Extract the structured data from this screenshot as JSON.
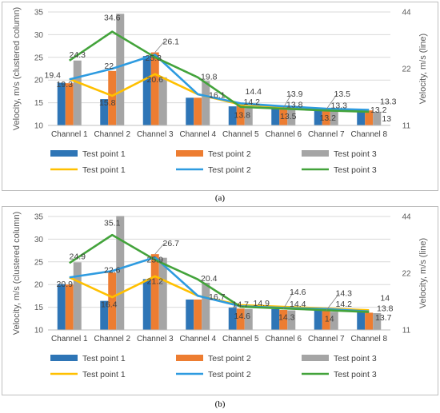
{
  "charts": [
    {
      "id": "a",
      "caption": "(a)",
      "categories": [
        "Channel 1",
        "Channel 2",
        "Channel 3",
        "Channel 4",
        "Channel 5",
        "Channel 6",
        "Channel 7",
        "Channel 8"
      ],
      "y_left": {
        "label": "Velocity, m/s (clustered column)",
        "min": 10,
        "max": 35,
        "ticks": [
          10,
          15,
          20,
          25,
          30,
          35
        ]
      },
      "y_right": {
        "label": "Velocity, m/s (line)",
        "min": 11,
        "max": 44,
        "ticks": [
          11,
          22,
          44
        ],
        "scale": "log"
      },
      "bars": [
        {
          "name": "Test point 1",
          "color": "#2e75b6",
          "values": [
            19.4,
            15.8,
            25.3,
            16.1,
            14.2,
            13.8,
            13.3,
            13.2
          ]
        },
        {
          "name": "Test point 2",
          "color": "#ed7d31",
          "values": [
            19.3,
            22,
            26.1,
            16.1,
            14.4,
            13.9,
            13.5,
            13.3
          ]
        },
        {
          "name": "Test point 3",
          "color": "#a5a5a5",
          "values": [
            24.3,
            34.6,
            20.6,
            19.8,
            13.8,
            13.5,
            13.2,
            13
          ]
        }
      ],
      "lines": [
        {
          "name": "Test point 1",
          "color": "#ffc000",
          "values": [
            19.4,
            15.8,
            20.6,
            16.1,
            14.2,
            13.8,
            13.3,
            13.2
          ]
        },
        {
          "name": "Test point 2",
          "color": "#2e9be0",
          "values": [
            19.3,
            22,
            26.1,
            16.1,
            14.4,
            13.9,
            13.5,
            13.3
          ]
        },
        {
          "name": "Test point 3",
          "color": "#43a33b",
          "values": [
            24.3,
            34.6,
            25.3,
            19.8,
            13.8,
            13.5,
            13.2,
            13
          ]
        }
      ],
      "data_labels": [
        {
          "text": "19.4",
          "ch": 0,
          "v": 19.4,
          "dx": -21,
          "dy": -6
        },
        {
          "text": "19.3",
          "ch": 0,
          "v": 19.3,
          "dx": -6,
          "dy": 5
        },
        {
          "text": "24.3",
          "ch": 0,
          "v": 24.3,
          "dx": 10,
          "dy": -4
        },
        {
          "text": "15.8",
          "ch": 1,
          "v": 15.8,
          "dx": -6,
          "dy": 8
        },
        {
          "text": "22",
          "ch": 1,
          "v": 22,
          "dx": -4,
          "dy": -3
        },
        {
          "text": "34.6",
          "ch": 1,
          "v": 34.6,
          "dx": 0,
          "dy": 8
        },
        {
          "text": "25.3",
          "ch": 2,
          "v": 25.3,
          "dx": -2,
          "dy": 6
        },
        {
          "text": "26.1",
          "ch": 2,
          "v": 26.1,
          "dx": 20,
          "dy": -10
        },
        {
          "text": "20.6",
          "ch": 2,
          "v": 20.6,
          "dx": 0,
          "dy": 6
        },
        {
          "text": "16.1",
          "ch": 3,
          "v": 16.1,
          "dx": 24,
          "dy": 0
        },
        {
          "text": "19.8",
          "ch": 3,
          "v": 19.8,
          "dx": 14,
          "dy": -2
        },
        {
          "text": "14.2",
          "ch": 4,
          "v": 14.2,
          "dx": 14,
          "dy": -2
        },
        {
          "text": "14.4",
          "ch": 4,
          "v": 14.4,
          "dx": 16,
          "dy": -14
        },
        {
          "text": "13.8",
          "ch": 4,
          "v": 13.8,
          "dx": 2,
          "dy": 12
        },
        {
          "text": "13.9",
          "ch": 5,
          "v": 13.9,
          "dx": 14,
          "dy": -14
        },
        {
          "text": "13.8",
          "ch": 5,
          "v": 13.8,
          "dx": 14,
          "dy": -1
        },
        {
          "text": "13.5",
          "ch": 5,
          "v": 13.5,
          "dx": 6,
          "dy": 12
        },
        {
          "text": "13.5",
          "ch": 6,
          "v": 13.5,
          "dx": 20,
          "dy": -16
        },
        {
          "text": "13.3",
          "ch": 6,
          "v": 13.3,
          "dx": 16,
          "dy": -3
        },
        {
          "text": "13.2",
          "ch": 6,
          "v": 13.2,
          "dx": 2,
          "dy": 12
        },
        {
          "text": "13.3",
          "ch": 7,
          "v": 13.3,
          "dx": 24,
          "dy": -8
        },
        {
          "text": "13.2",
          "ch": 7,
          "v": 13.2,
          "dx": 12,
          "dy": 2
        },
        {
          "text": "13",
          "ch": 7,
          "v": 13,
          "dx": 22,
          "dy": 12
        }
      ],
      "leader_lines": [
        {
          "ch": 2,
          "v": 26.1,
          "tdx": 12,
          "tdy": -14
        },
        {
          "ch": 5,
          "v": 13.9,
          "tdx": 10,
          "tdy": -17
        },
        {
          "ch": 6,
          "v": 13.5,
          "tdx": 14,
          "tdy": -20
        }
      ],
      "legend": {
        "bars": [
          "Test point 1",
          "Test point 2",
          "Test point 3"
        ],
        "lines": [
          "Test point 1",
          "Test point 2",
          "Test point 3"
        ]
      }
    },
    {
      "id": "b",
      "caption": "(b)",
      "categories": [
        "Channel 1",
        "Channel 2",
        "Channel 3",
        "Channel 4",
        "Channel 5",
        "Channel 6",
        "Channel 7",
        "Channel 8"
      ],
      "y_left": {
        "label": "Velocity, m/s (clustered column)",
        "min": 10,
        "max": 35,
        "ticks": [
          10,
          15,
          20,
          25,
          30,
          35
        ]
      },
      "y_right": {
        "label": "Velocity, m/s (line)",
        "min": 11,
        "max": 44,
        "ticks": [
          11,
          22,
          44
        ],
        "scale": "log"
      },
      "bars": [
        {
          "name": "Test point 1",
          "color": "#2e75b6",
          "values": [
            20.1,
            16.4,
            21.2,
            16.7,
            14.9,
            14.6,
            14.3,
            14
          ]
        },
        {
          "name": "Test point 2",
          "color": "#ed7d31",
          "values": [
            20,
            22.6,
            26.7,
            16.7,
            14.7,
            14.4,
            14.2,
            13.8
          ]
        },
        {
          "name": "Test point 3",
          "color": "#a5a5a5",
          "values": [
            24.9,
            35.1,
            25.9,
            20.4,
            14.6,
            14.3,
            14,
            13.7
          ]
        }
      ],
      "lines": [
        {
          "name": "Test point 1",
          "color": "#ffc000",
          "values": [
            20.9,
            16.4,
            21.2,
            16.7,
            14.9,
            14.6,
            14.3,
            14
          ]
        },
        {
          "name": "Test point 2",
          "color": "#2e9be0",
          "values": [
            20.9,
            22.6,
            26.7,
            16.7,
            14.7,
            14.4,
            14.2,
            13.8
          ]
        },
        {
          "name": "Test point 3",
          "color": "#43a33b",
          "values": [
            24.9,
            35.1,
            25.9,
            20.4,
            14.6,
            14.3,
            14,
            13.7
          ]
        }
      ],
      "data_labels": [
        {
          "text": "24.9",
          "ch": 0,
          "v": 24.9,
          "dx": 10,
          "dy": -4
        },
        {
          "text": "20.9",
          "ch": 0,
          "v": 20.9,
          "dx": -6,
          "dy": 8
        },
        {
          "text": "22.6",
          "ch": 1,
          "v": 22.6,
          "dx": 0,
          "dy": 0
        },
        {
          "text": "16.4",
          "ch": 1,
          "v": 16.4,
          "dx": -4,
          "dy": 8
        },
        {
          "text": "35.1",
          "ch": 1,
          "v": 35.1,
          "dx": 0,
          "dy": 12
        },
        {
          "text": "26.7",
          "ch": 2,
          "v": 26.7,
          "dx": 20,
          "dy": -10
        },
        {
          "text": "25.9",
          "ch": 2,
          "v": 25.9,
          "dx": 0,
          "dy": 6
        },
        {
          "text": "21.2",
          "ch": 2,
          "v": 21.2,
          "dx": 0,
          "dy": 6
        },
        {
          "text": "20.4",
          "ch": 3,
          "v": 20.4,
          "dx": 14,
          "dy": -2
        },
        {
          "text": "16.7",
          "ch": 3,
          "v": 16.7,
          "dx": 24,
          "dy": 0
        },
        {
          "text": "14.7",
          "ch": 4,
          "v": 14.7,
          "dx": 0,
          "dy": -2
        },
        {
          "text": "14.9",
          "ch": 4,
          "v": 14.9,
          "dx": 26,
          "dy": -2
        },
        {
          "text": "14.6",
          "ch": 4,
          "v": 14.6,
          "dx": 2,
          "dy": 12
        },
        {
          "text": "14.6",
          "ch": 5,
          "v": 14.6,
          "dx": 18,
          "dy": -18
        },
        {
          "text": "14.4",
          "ch": 5,
          "v": 14.4,
          "dx": 18,
          "dy": -4
        },
        {
          "text": "14.3",
          "ch": 5,
          "v": 14.3,
          "dx": 4,
          "dy": 12
        },
        {
          "text": "14.3",
          "ch": 6,
          "v": 14.3,
          "dx": 22,
          "dy": -18
        },
        {
          "text": "14.2",
          "ch": 6,
          "v": 14.2,
          "dx": 22,
          "dy": -5
        },
        {
          "text": "14",
          "ch": 6,
          "v": 14,
          "dx": 4,
          "dy": 12
        },
        {
          "text": "14",
          "ch": 7,
          "v": 14,
          "dx": 20,
          "dy": -14
        },
        {
          "text": "13.8",
          "ch": 7,
          "v": 13.8,
          "dx": 20,
          "dy": -2
        },
        {
          "text": "13.7",
          "ch": 7,
          "v": 13.7,
          "dx": 18,
          "dy": 9
        }
      ],
      "leader_lines": [
        {
          "ch": 2,
          "v": 26.7,
          "tdx": 12,
          "tdy": -14
        },
        {
          "ch": 5,
          "v": 14.6,
          "tdx": 12,
          "tdy": -21
        },
        {
          "ch": 6,
          "v": 14.3,
          "tdx": 16,
          "tdy": -21
        }
      ],
      "legend": {
        "bars": [
          "Test point 1",
          "Test point 2",
          "Test point 3"
        ],
        "lines": [
          "Test point 1",
          "Test point 2",
          "Test point 3"
        ]
      }
    }
  ],
  "chart_data": [
    {
      "type": "bar",
      "categories": [
        "Channel 1",
        "Channel 2",
        "Channel 3",
        "Channel 4",
        "Channel 5",
        "Channel 6",
        "Channel 7",
        "Channel 8"
      ],
      "ylabel": "Velocity, m/s (clustered column)",
      "ylim": [
        10,
        35
      ],
      "y2label": "Velocity, m/s (line)",
      "y2ticks": [
        11,
        22,
        44
      ],
      "series": [
        {
          "name": "Test point 1",
          "kind": "bar",
          "values": [
            19.4,
            15.8,
            25.3,
            16.1,
            14.2,
            13.8,
            13.3,
            13.2
          ]
        },
        {
          "name": "Test point 2",
          "kind": "bar",
          "values": [
            19.3,
            22,
            26.1,
            16.1,
            14.4,
            13.9,
            13.5,
            13.3
          ]
        },
        {
          "name": "Test point 3",
          "kind": "bar",
          "values": [
            24.3,
            34.6,
            20.6,
            19.8,
            13.8,
            13.5,
            13.2,
            13
          ]
        },
        {
          "name": "Test point 1",
          "kind": "line",
          "values": [
            19.4,
            15.8,
            20.6,
            16.1,
            14.2,
            13.8,
            13.3,
            13.2
          ]
        },
        {
          "name": "Test point 2",
          "kind": "line",
          "values": [
            19.3,
            22,
            26.1,
            16.1,
            14.4,
            13.9,
            13.5,
            13.3
          ]
        },
        {
          "name": "Test point 3",
          "kind": "line",
          "values": [
            24.3,
            34.6,
            25.3,
            19.8,
            13.8,
            13.5,
            13.2,
            13
          ]
        }
      ],
      "legend": "bottom"
    },
    {
      "type": "bar",
      "categories": [
        "Channel 1",
        "Channel 2",
        "Channel 3",
        "Channel 4",
        "Channel 5",
        "Channel 6",
        "Channel 7",
        "Channel 8"
      ],
      "ylabel": "Velocity, m/s (clustered column)",
      "ylim": [
        10,
        35
      ],
      "y2label": "Velocity, m/s (line)",
      "y2ticks": [
        11,
        22,
        44
      ],
      "series": [
        {
          "name": "Test point 1",
          "kind": "bar",
          "values": [
            20.1,
            16.4,
            21.2,
            16.7,
            14.9,
            14.6,
            14.3,
            14
          ]
        },
        {
          "name": "Test point 2",
          "kind": "bar",
          "values": [
            20,
            22.6,
            26.7,
            16.7,
            14.7,
            14.4,
            14.2,
            13.8
          ]
        },
        {
          "name": "Test point 3",
          "kind": "bar",
          "values": [
            24.9,
            35.1,
            25.9,
            20.4,
            14.6,
            14.3,
            14,
            13.7
          ]
        },
        {
          "name": "Test point 1",
          "kind": "line",
          "values": [
            20.9,
            16.4,
            21.2,
            16.7,
            14.9,
            14.6,
            14.3,
            14
          ]
        },
        {
          "name": "Test point 2",
          "kind": "line",
          "values": [
            20.9,
            22.6,
            26.7,
            16.7,
            14.7,
            14.4,
            14.2,
            13.8
          ]
        },
        {
          "name": "Test point 3",
          "kind": "line",
          "values": [
            24.9,
            35.1,
            25.9,
            20.4,
            14.6,
            14.3,
            14,
            13.7
          ]
        }
      ],
      "legend": "bottom"
    }
  ]
}
